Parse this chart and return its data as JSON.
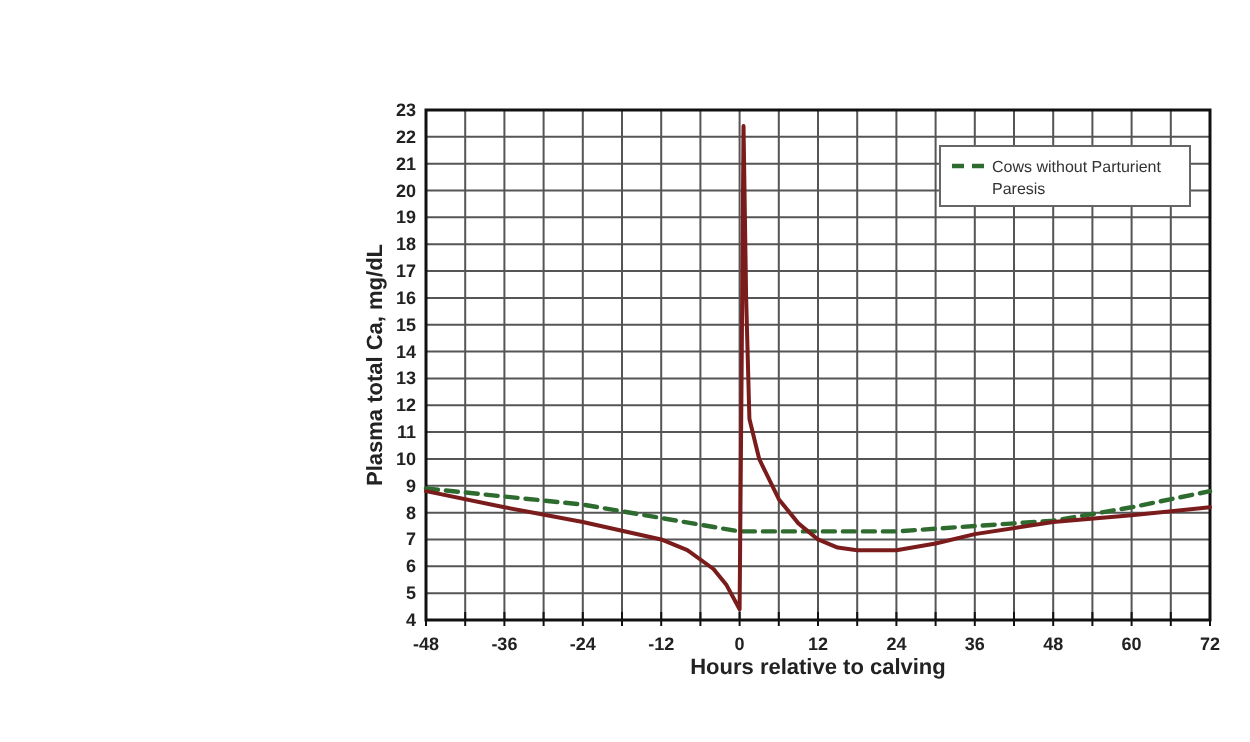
{
  "chart_data": {
    "type": "line",
    "xlabel": "Hours relative to calving",
    "ylabel": "Plasma total Ca, mg/dL",
    "xlim": [
      -48,
      72
    ],
    "ylim": [
      4,
      23
    ],
    "xticks": [
      -48,
      {
        "value": -42,
        "label": null
      },
      -36,
      {
        "value": -30,
        "label": null
      },
      -24,
      {
        "value": -18,
        "label": null
      },
      -12,
      {
        "value": -6,
        "label": null
      },
      0,
      {
        "value": 6,
        "label": null
      },
      12,
      {
        "value": 18,
        "label": null
      },
      24,
      {
        "value": 30,
        "label": null
      },
      36,
      {
        "value": 42,
        "label": null
      },
      48,
      {
        "value": 54,
        "label": null
      },
      60,
      {
        "value": 66,
        "label": null
      },
      72
    ],
    "yticks": [
      4,
      5,
      6,
      7,
      8,
      9,
      10,
      11,
      12,
      13,
      14,
      15,
      16,
      17,
      18,
      19,
      20,
      21,
      22,
      23
    ],
    "grid": true,
    "legend": "top right",
    "marker": "none",
    "series": [
      {
        "name": "Cows without Parturient Paresis",
        "color": "#2e6b2e",
        "line_style": "dashed",
        "x": [
          -48,
          -36,
          -24,
          -12,
          0,
          12,
          24,
          36,
          48,
          60,
          72
        ],
        "values": [
          8.9,
          8.6,
          8.3,
          7.8,
          7.3,
          7.3,
          7.3,
          7.5,
          7.7,
          8.2,
          8.8
        ]
      },
      {
        "color": "#7b1c1c",
        "line_style": "solid",
        "x": [
          -48,
          -36,
          -24,
          -12,
          -8,
          -4,
          -2,
          0,
          0.3,
          0.6,
          1,
          1.5,
          3,
          6,
          9,
          12,
          15,
          18,
          24,
          30,
          36,
          48,
          60,
          72
        ],
        "values": [
          8.8,
          8.2,
          7.65,
          7.0,
          6.6,
          5.9,
          5.3,
          4.4,
          13,
          22.4,
          16,
          11.5,
          10,
          8.5,
          7.6,
          7.0,
          6.7,
          6.6,
          6.6,
          6.85,
          7.2,
          7.65,
          7.9,
          8.2
        ]
      }
    ]
  }
}
